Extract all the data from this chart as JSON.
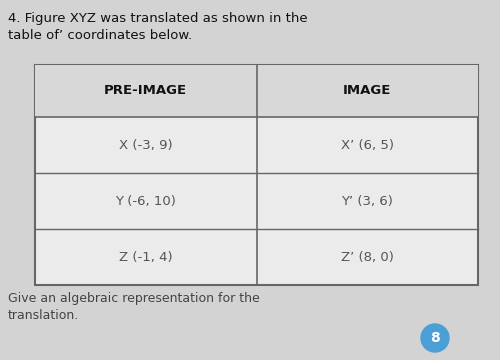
{
  "title_line1": "4. Figure XYZ was translated as shown in the",
  "title_line2": "table of’ coordinates below.",
  "col_headers": [
    "PRE-IMAGE",
    "IMAGE"
  ],
  "rows": [
    [
      "X (-3, 9)",
      "X’ (6, 5)"
    ],
    [
      "Y (-6, 10)",
      "Y’ (3, 6)"
    ],
    [
      "Z (-1, 4)",
      "Z’ (8, 0)"
    ]
  ],
  "footer_line1": "Give an algebraic representation for the",
  "footer_line2": "translation.",
  "badge_number": "8",
  "bg_color": "#d3d3d3",
  "table_bg": "#ebebeb",
  "header_bg": "#d8d8d8",
  "border_color": "#666666",
  "title_color": "#111111",
  "header_text_color": "#111111",
  "cell_text_color": "#555555",
  "footer_text_color": "#444444",
  "badge_color": "#4a9fd4",
  "title_fontsize": 9.5,
  "header_fontsize": 9.5,
  "cell_fontsize": 9.5,
  "footer_fontsize": 9.0
}
